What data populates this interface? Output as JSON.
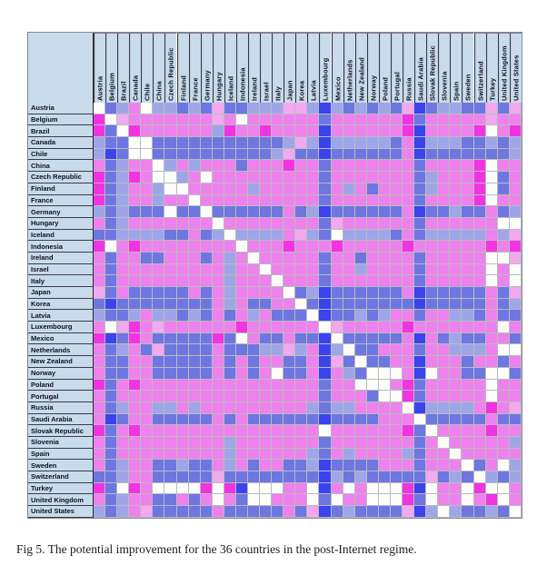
{
  "figure": {
    "caption": "Fig 5. The potential improvement for the 36 countries in the post-Internet regime."
  },
  "styles": {
    "header_bg": "#c8dbeb",
    "grid_line": "#b9bac4",
    "border": "#85858f",
    "label_color": "#0f0f1e",
    "caption_color": "#1c1c1c"
  },
  "chart_data": {
    "type": "heatmap",
    "title": "",
    "xlabel": "",
    "ylabel": "",
    "legend_position": "none",
    "countries": [
      "Austria",
      "Belgium",
      "Brazil",
      "Canada",
      "Chile",
      "China",
      "Czech Republic",
      "Finland",
      "France",
      "Germany",
      "Hungary",
      "Iceland",
      "Indonesia",
      "Ireland",
      "Israel",
      "Italy",
      "Japan",
      "Korea",
      "Latvia",
      "Luxembourg",
      "Mexico",
      "Netherlands",
      "New Zealand",
      "Norway",
      "Poland",
      "Portugal",
      "Russia",
      "Saudi Arabia",
      "Slovak Republic",
      "Slovenia",
      "Spain",
      "Sweden",
      "Switzerland",
      "Turkey",
      "United Kingdom",
      "United States"
    ],
    "palette": {
      "W": "#fdfdfa",
      "L": "#9fa6e8",
      "B": "#6e76df",
      "D": "#3a43ec",
      "P": "#f2a9ef",
      "M": "#ee82ec",
      "H": "#f233e2"
    },
    "palette_names": {
      "W": "white",
      "L": "light-periwinkle",
      "B": "blue-violet",
      "D": "vivid-blue",
      "P": "light-pink",
      "M": "orchid-pink",
      "H": "bright-magenta"
    },
    "cells": [
      "WBLMWLLBLBPBBLLLPPLDLBLBLBPDBLLBBPBP",
      "HWPMMMMMMMPMWMMMMMMBMMMMMMHBMMMMMPMM",
      "HBWHMMMMMMLHMMHMMMMDMMMMMMHDMMMMHWMH",
      "LBBWWBBBBBBBBBBBLPLDLLLLLBMDLLLBBLBL",
      "LDBWWBBBBBBBBBBLPBBDBBBBBBMDBBBBBBBL",
      "MBLMMWLMLMMMBMMMHMMBMMMMMMMBMMMMHWMM",
      "HBLHMWWLMWMMMMMMMMMBMMMMMMMBLMMMHWBM",
      "HBLMMLWWMMMMMLMMMMMBMLMBMMMBLMMMHWBM",
      "HBLMMLMMWMMMMMMMMMMBMMMMMMMBMMMMHWMM",
      "LBLBBBWBBWBBBBBBMBLDBBBBBBMDBBLBBMBL",
      "MBLMMMMMMMWMMMMMMMMBPMMMMMMBMMMMMMWW",
      "BBLLLLBBMBLWLLLLMPLBWLLLLBMBLLLLLMLP",
      "HWMHMMMMMMMMWMMMHMMMHMMMMMHMMMMMMHMH",
      "MBMMBBMMMBMLMWMMMMMBMMBMMMMBMMMMMWWP",
      "MBMMMMMMMMMLMMWMMMMBMMLMMMMBMMMMMWMW",
      "MBMMMMMMMMMLMMMWMMMBMMMMMMMBMMMMMWMW",
      "PBMBBBBBMBMLMMMMWBLDBBBBBBMDBBBBBMBP",
      "BDBBBBBBBBMLMBBMMWBDBBBBBBBDBBBBBMBL",
      "LBBLMLLBLBMBMLMBBBWDBBLBLMMBMMLLBMBB",
      "MWPHMPMMMMMMHMMMMMMWPMMMMMHMMMMMMMWM",
      "HDBHMBBBBBHBWMBBMBBDWBBBBBMDMBLBBMMB",
      "MBLMBPBBBBMBBBLLPLMDLWBBMMMBMMLLLMWW",
      "MBBMMBBBBBMBMBMMBBMDPBWBBMMDMMMBMMBM",
      "MBBMMBBBBBMBMBMWBBMDMLBWWWMDWMMBBWWB",
      "HBMHMMMMMMMMMMMMMMMBMMWWWMHBMMMMMWMM",
      "MBMMMMMMMMMMMMMMMMMBMMMBWWHBMMMMMWMM",
      "MBLMMLLMLMMMMMMMMMLBLLMMMMWDLLLLMHMP",
      "MDBMMBBBBBMBMBBBBBBDBBBBMMMWBBBBBMBB",
      "HBMHMMMMMMMMMMMMMMMWMMMMMMHBWMMMMHMM",
      "MBMMMMMMMMMLMMMMMMMBMMMMMMMBMWMMMMML",
      "MBMMMMMMMMMLMMMMMMLBMLMMMMLBMMWMMMMM",
      "MBLMMBBLBBMLMBMMBBLDBBBBMMMBMMMWBMWL",
      "BBLMMBBBBBPBBBBBBBBDLBLBBBBBPBLBWLBL",
      "HBWHMWWWWHWHDWWWMMWDMWMWWWHDWMMWHWWM",
      "MBLMMBBMBMWMBWWMMMWBWMMWWWHBWMMWMHWM",
      "LBLMPBBBBBMBBBBBMBPDBLBBBBPDLWLBBLBW"
    ]
  }
}
